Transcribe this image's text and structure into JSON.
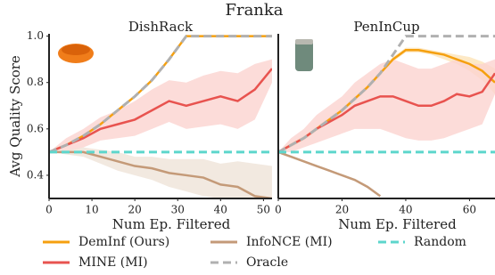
{
  "title": "Franka",
  "chart_data": [
    {
      "type": "line",
      "title": "DishRack",
      "xlabel": "Num Ep. Filtered",
      "ylabel": "Avg Quality Score",
      "xlim": [
        0,
        52
      ],
      "xticks": [
        0,
        10,
        20,
        30,
        40,
        50
      ],
      "ylim": [
        0.3,
        1.01
      ],
      "yticks": [
        {
          "value": 0.4,
          "label": "0.4"
        },
        {
          "value": 0.6,
          "label": "0.6"
        },
        {
          "value": 0.8,
          "label": "0.8"
        },
        {
          "value": 1.0,
          "label": "1.0"
        }
      ],
      "x": [
        0,
        4,
        8,
        12,
        16,
        20,
        24,
        28,
        32,
        36,
        40,
        44,
        48,
        52
      ],
      "series": [
        {
          "name": "DemInf (Ours)",
          "color": "#f5a00f",
          "values": [
            0.5,
            0.53,
            0.57,
            0.62,
            0.68,
            0.74,
            0.81,
            0.9,
            1.0,
            1.0,
            1.0,
            1.0,
            1.0,
            1.0
          ]
        },
        {
          "name": "MINE (MI)",
          "color": "#e8534f",
          "values": [
            0.5,
            0.53,
            0.56,
            0.6,
            0.62,
            0.64,
            0.68,
            0.72,
            0.7,
            0.72,
            0.74,
            0.72,
            0.77,
            0.86
          ],
          "band_color": "#fbd3d0",
          "lower": [
            0.5,
            0.5,
            0.52,
            0.55,
            0.56,
            0.57,
            0.6,
            0.63,
            0.6,
            0.61,
            0.62,
            0.6,
            0.64,
            0.8
          ],
          "upper": [
            0.5,
            0.56,
            0.6,
            0.65,
            0.68,
            0.72,
            0.77,
            0.81,
            0.8,
            0.83,
            0.85,
            0.84,
            0.88,
            0.9
          ]
        },
        {
          "name": "InfoNCE (MI)",
          "color": "#c49a78",
          "values": [
            0.5,
            0.5,
            0.5,
            0.48,
            0.46,
            0.44,
            0.43,
            0.41,
            0.4,
            0.39,
            0.36,
            0.35,
            0.31,
            0.3
          ],
          "band_color": "#efe3d8",
          "lower": [
            0.5,
            0.49,
            0.48,
            0.45,
            0.42,
            0.4,
            0.38,
            0.35,
            0.33,
            0.31,
            0.3,
            0.3,
            0.3,
            0.3
          ],
          "upper": [
            0.5,
            0.51,
            0.52,
            0.51,
            0.5,
            0.48,
            0.48,
            0.47,
            0.47,
            0.47,
            0.45,
            0.46,
            0.45,
            0.44
          ]
        },
        {
          "name": "Oracle",
          "color": "#b0b0b0",
          "dashed": true,
          "values": [
            0.5,
            0.53,
            0.57,
            0.62,
            0.68,
            0.74,
            0.81,
            0.9,
            1.0,
            1.0,
            1.0,
            1.0,
            1.0,
            1.0
          ]
        },
        {
          "name": "Random",
          "color": "#5dd6cc",
          "dashed": true,
          "values": [
            0.5,
            0.5,
            0.5,
            0.5,
            0.5,
            0.5,
            0.5,
            0.5,
            0.5,
            0.5,
            0.5,
            0.5,
            0.5,
            0.5
          ]
        }
      ]
    },
    {
      "type": "line",
      "title": "PenInCup",
      "xlabel": "Num Ep. Filtered",
      "xlim": [
        0,
        68
      ],
      "xticks": [
        0,
        20,
        40,
        60
      ],
      "ylim": [
        0.3,
        1.01
      ],
      "x": [
        0,
        4,
        8,
        12,
        16,
        20,
        24,
        28,
        32,
        36,
        40,
        44,
        48,
        52,
        56,
        60,
        64,
        68
      ],
      "series": [
        {
          "name": "DemInf (Ours)",
          "color": "#f5a00f",
          "values": [
            0.5,
            0.53,
            0.56,
            0.6,
            0.64,
            0.68,
            0.73,
            0.78,
            0.84,
            0.9,
            0.94,
            0.94,
            0.93,
            0.92,
            0.9,
            0.88,
            0.85,
            0.8
          ],
          "band_color": "#fde3b8",
          "lower": [
            0.5,
            0.52,
            0.55,
            0.59,
            0.63,
            0.67,
            0.72,
            0.77,
            0.83,
            0.89,
            0.93,
            0.93,
            0.92,
            0.9,
            0.88,
            0.85,
            0.81,
            0.75
          ],
          "upper": [
            0.5,
            0.54,
            0.57,
            0.61,
            0.65,
            0.69,
            0.74,
            0.79,
            0.85,
            0.91,
            0.95,
            0.95,
            0.94,
            0.93,
            0.92,
            0.91,
            0.89,
            0.86
          ]
        },
        {
          "name": "MINE (MI)",
          "color": "#e8534f",
          "values": [
            0.5,
            0.53,
            0.56,
            0.6,
            0.63,
            0.66,
            0.7,
            0.72,
            0.74,
            0.74,
            0.72,
            0.7,
            0.7,
            0.72,
            0.75,
            0.74,
            0.76,
            0.84
          ],
          "band_color": "#fbd3d0",
          "lower": [
            0.5,
            0.5,
            0.52,
            0.54,
            0.56,
            0.58,
            0.6,
            0.6,
            0.6,
            0.58,
            0.56,
            0.55,
            0.55,
            0.56,
            0.58,
            0.6,
            0.62,
            0.75
          ],
          "upper": [
            0.5,
            0.56,
            0.6,
            0.66,
            0.7,
            0.74,
            0.8,
            0.84,
            0.88,
            0.9,
            0.88,
            0.86,
            0.86,
            0.88,
            0.9,
            0.88,
            0.88,
            0.9
          ]
        },
        {
          "name": "InfoNCE (MI)",
          "color": "#c49a78",
          "values": [
            0.5,
            0.48,
            0.46,
            0.44,
            0.42,
            0.4,
            0.38,
            0.35,
            0.31,
            null,
            null,
            null,
            null,
            null,
            null,
            null,
            null,
            null
          ]
        },
        {
          "name": "Oracle",
          "color": "#b0b0b0",
          "dashed": true,
          "values": [
            0.5,
            0.53,
            0.56,
            0.6,
            0.64,
            0.68,
            0.73,
            0.78,
            0.84,
            0.92,
            1.0,
            1.0,
            1.0,
            1.0,
            1.0,
            1.0,
            1.0,
            1.0
          ]
        },
        {
          "name": "Random",
          "color": "#5dd6cc",
          "dashed": true,
          "values": [
            0.5,
            0.5,
            0.5,
            0.5,
            0.5,
            0.5,
            0.5,
            0.5,
            0.5,
            0.5,
            0.5,
            0.5,
            0.5,
            0.5,
            0.5,
            0.5,
            0.5,
            0.5
          ]
        }
      ]
    }
  ]
}
